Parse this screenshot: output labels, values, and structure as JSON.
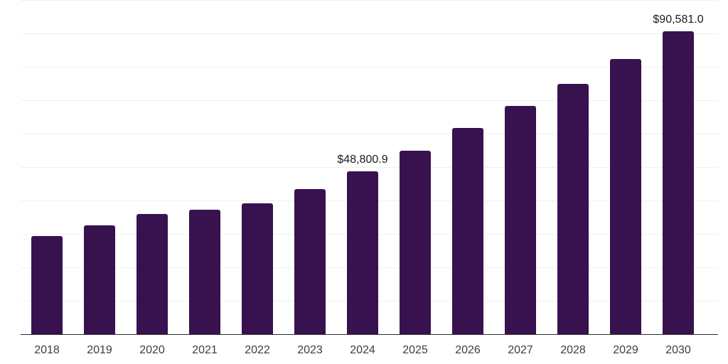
{
  "chart_data": {
    "type": "bar",
    "title": "",
    "xlabel": "",
    "ylabel": "",
    "categories": [
      "2018",
      "2019",
      "2020",
      "2021",
      "2022",
      "2023",
      "2024",
      "2025",
      "2026",
      "2027",
      "2028",
      "2029",
      "2030"
    ],
    "values": [
      29400,
      32600,
      36000,
      37300,
      39200,
      43500,
      48800.9,
      55000,
      61800,
      68200,
      74800,
      82300,
      90581.0
    ],
    "data_labels": {
      "2024": "$48,800.9",
      "2030": "$90,581.0"
    },
    "ylim": [
      0,
      100000
    ],
    "gridline_step": 10000,
    "grid": "horizontal-only",
    "legend": "none",
    "bar_color": "#38114F",
    "gridline_color": "#f0f0f0",
    "axis_line_color": "#2b2b2b",
    "tick_label_color": "#3d3d3d",
    "value_label_color": "#1a1a1a"
  }
}
